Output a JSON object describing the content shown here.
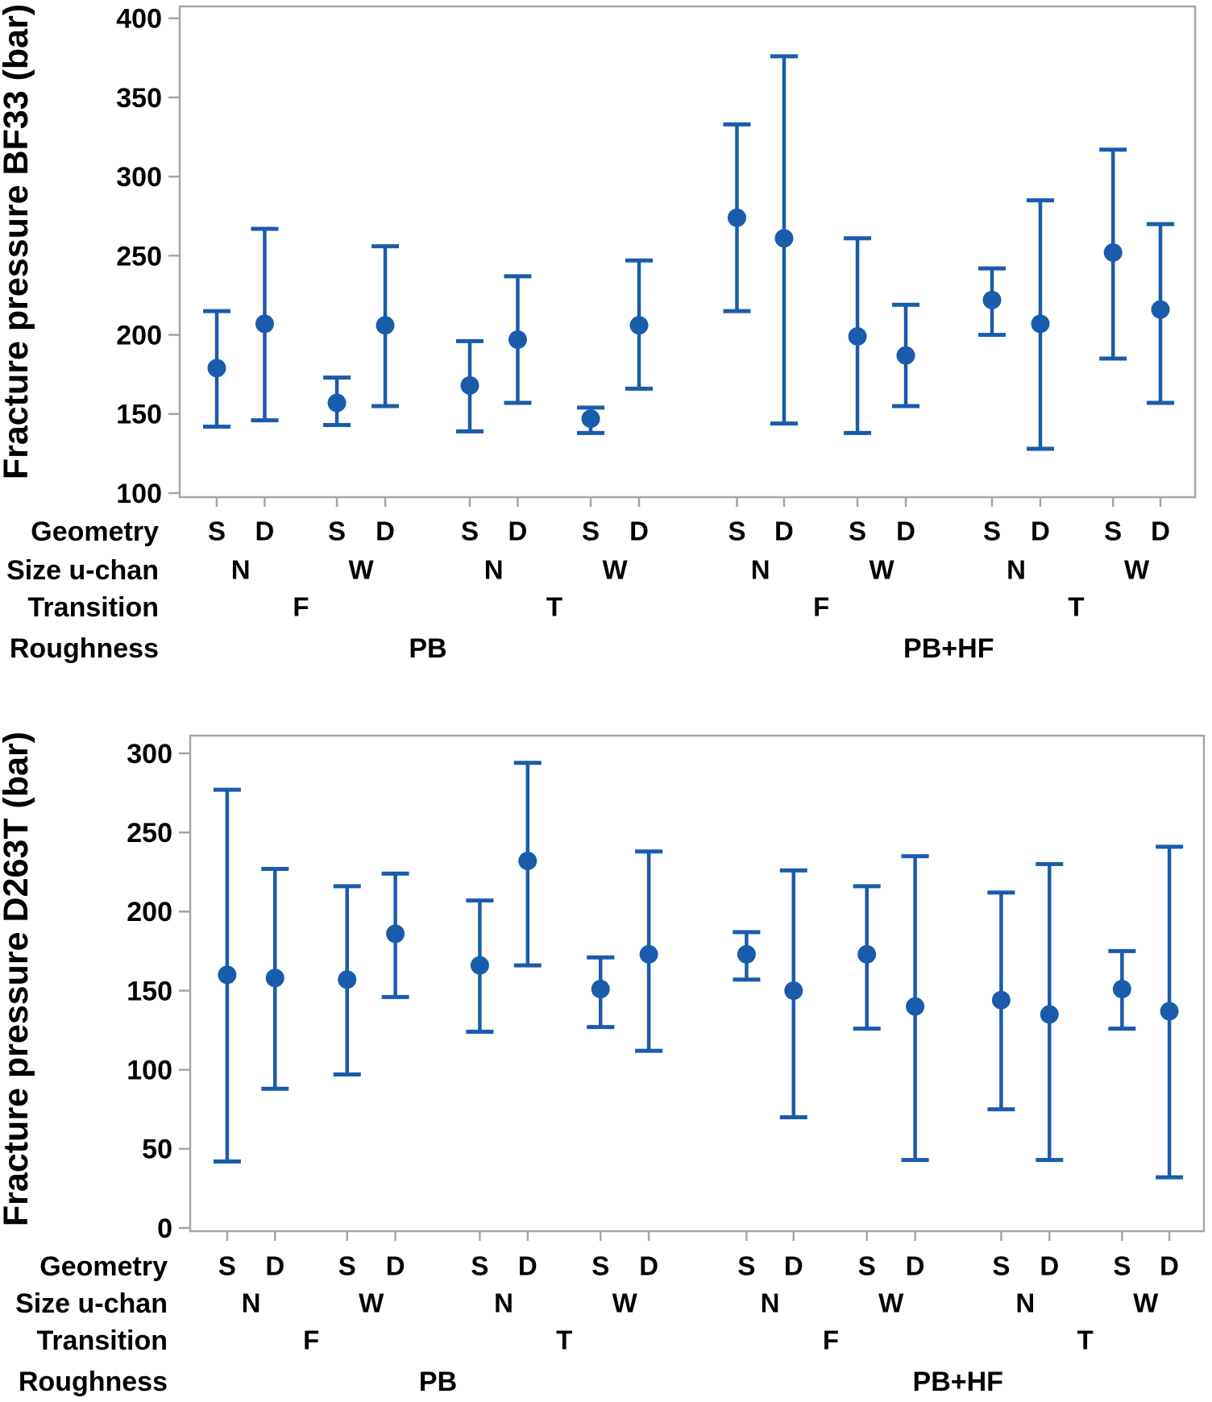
{
  "figure": {
    "marker_color": "#1A5BAB",
    "axis_color": "#A6A6A6",
    "text_color": "#000000"
  },
  "chart_data": [
    {
      "type": "interval-plot",
      "ylabel": "Fracture pressure BF33 (bar)",
      "ylim": [
        100,
        400
      ],
      "yticks": [
        400,
        350,
        300,
        250,
        200,
        150,
        100
      ],
      "grid": false,
      "legend": "none",
      "factor_rows": [
        "Geometry",
        "Size u-chan",
        "Transition",
        "Roughness"
      ],
      "points": [
        {
          "roughness": "PB",
          "transition": "F",
          "size": "N",
          "geometry": "S",
          "mean": 179,
          "lo": 142,
          "hi": 215
        },
        {
          "roughness": "PB",
          "transition": "F",
          "size": "N",
          "geometry": "D",
          "mean": 207,
          "lo": 146,
          "hi": 267
        },
        {
          "roughness": "PB",
          "transition": "F",
          "size": "W",
          "geometry": "S",
          "mean": 157,
          "lo": 143,
          "hi": 173
        },
        {
          "roughness": "PB",
          "transition": "F",
          "size": "W",
          "geometry": "D",
          "mean": 206,
          "lo": 155,
          "hi": 256
        },
        {
          "roughness": "PB",
          "transition": "T",
          "size": "N",
          "geometry": "S",
          "mean": 168,
          "lo": 139,
          "hi": 196
        },
        {
          "roughness": "PB",
          "transition": "T",
          "size": "N",
          "geometry": "D",
          "mean": 197,
          "lo": 157,
          "hi": 237
        },
        {
          "roughness": "PB",
          "transition": "T",
          "size": "W",
          "geometry": "S",
          "mean": 147,
          "lo": 138,
          "hi": 154
        },
        {
          "roughness": "PB",
          "transition": "T",
          "size": "W",
          "geometry": "D",
          "mean": 206,
          "lo": 166,
          "hi": 247
        },
        {
          "roughness": "PB+HF",
          "transition": "F",
          "size": "N",
          "geometry": "S",
          "mean": 274,
          "lo": 215,
          "hi": 333
        },
        {
          "roughness": "PB+HF",
          "transition": "F",
          "size": "N",
          "geometry": "D",
          "mean": 261,
          "lo": 144,
          "hi": 376
        },
        {
          "roughness": "PB+HF",
          "transition": "F",
          "size": "W",
          "geometry": "S",
          "mean": 199,
          "lo": 138,
          "hi": 261
        },
        {
          "roughness": "PB+HF",
          "transition": "F",
          "size": "W",
          "geometry": "D",
          "mean": 187,
          "lo": 155,
          "hi": 219
        },
        {
          "roughness": "PB+HF",
          "transition": "T",
          "size": "N",
          "geometry": "S",
          "mean": 222,
          "lo": 200,
          "hi": 242
        },
        {
          "roughness": "PB+HF",
          "transition": "T",
          "size": "N",
          "geometry": "D",
          "mean": 207,
          "lo": 128,
          "hi": 285
        },
        {
          "roughness": "PB+HF",
          "transition": "T",
          "size": "W",
          "geometry": "S",
          "mean": 252,
          "lo": 185,
          "hi": 317
        },
        {
          "roughness": "PB+HF",
          "transition": "T",
          "size": "W",
          "geometry": "D",
          "mean": 216,
          "lo": 157,
          "hi": 270
        }
      ]
    },
    {
      "type": "interval-plot",
      "ylabel": "Fracture pressure D263T (bar)",
      "ylim": [
        0,
        300
      ],
      "yticks": [
        300,
        250,
        200,
        150,
        100,
        50,
        0
      ],
      "grid": false,
      "legend": "none",
      "factor_rows": [
        "Geometry",
        "Size u-chan",
        "Transition",
        "Roughness"
      ],
      "points": [
        {
          "roughness": "PB",
          "transition": "F",
          "size": "N",
          "geometry": "S",
          "mean": 160,
          "lo": 42,
          "hi": 277
        },
        {
          "roughness": "PB",
          "transition": "F",
          "size": "N",
          "geometry": "D",
          "mean": 158,
          "lo": 88,
          "hi": 227
        },
        {
          "roughness": "PB",
          "transition": "F",
          "size": "W",
          "geometry": "S",
          "mean": 157,
          "lo": 97,
          "hi": 216
        },
        {
          "roughness": "PB",
          "transition": "F",
          "size": "W",
          "geometry": "D",
          "mean": 186,
          "lo": 146,
          "hi": 224
        },
        {
          "roughness": "PB",
          "transition": "T",
          "size": "N",
          "geometry": "S",
          "mean": 166,
          "lo": 124,
          "hi": 207
        },
        {
          "roughness": "PB",
          "transition": "T",
          "size": "N",
          "geometry": "D",
          "mean": 232,
          "lo": 166,
          "hi": 294
        },
        {
          "roughness": "PB",
          "transition": "T",
          "size": "W",
          "geometry": "S",
          "mean": 151,
          "lo": 127,
          "hi": 171
        },
        {
          "roughness": "PB",
          "transition": "T",
          "size": "W",
          "geometry": "D",
          "mean": 173,
          "lo": 112,
          "hi": 238
        },
        {
          "roughness": "PB+HF",
          "transition": "F",
          "size": "N",
          "geometry": "S",
          "mean": 173,
          "lo": 157,
          "hi": 187
        },
        {
          "roughness": "PB+HF",
          "transition": "F",
          "size": "N",
          "geometry": "D",
          "mean": 150,
          "lo": 70,
          "hi": 226
        },
        {
          "roughness": "PB+HF",
          "transition": "F",
          "size": "W",
          "geometry": "S",
          "mean": 173,
          "lo": 126,
          "hi": 216
        },
        {
          "roughness": "PB+HF",
          "transition": "F",
          "size": "W",
          "geometry": "D",
          "mean": 140,
          "lo": 43,
          "hi": 235
        },
        {
          "roughness": "PB+HF",
          "transition": "T",
          "size": "N",
          "geometry": "S",
          "mean": 144,
          "lo": 75,
          "hi": 212
        },
        {
          "roughness": "PB+HF",
          "transition": "T",
          "size": "N",
          "geometry": "D",
          "mean": 135,
          "lo": 43,
          "hi": 230
        },
        {
          "roughness": "PB+HF",
          "transition": "T",
          "size": "W",
          "geometry": "S",
          "mean": 151,
          "lo": 126,
          "hi": 175
        },
        {
          "roughness": "PB+HF",
          "transition": "T",
          "size": "W",
          "geometry": "D",
          "mean": 137,
          "lo": 32,
          "hi": 241
        }
      ]
    }
  ]
}
